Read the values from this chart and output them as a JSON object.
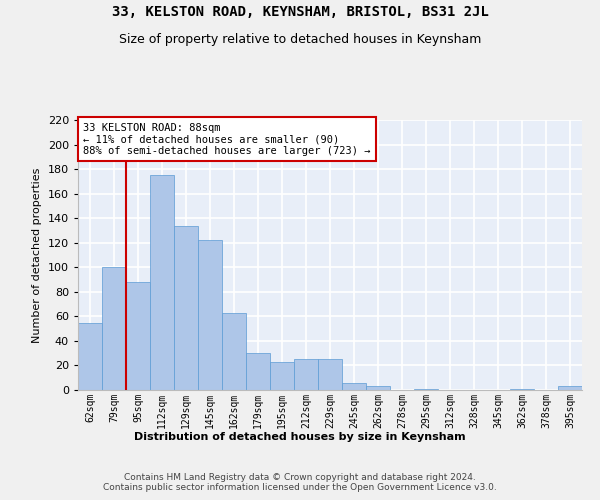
{
  "title": "33, KELSTON ROAD, KEYNSHAM, BRISTOL, BS31 2JL",
  "subtitle": "Size of property relative to detached houses in Keynsham",
  "xlabel": "Distribution of detached houses by size in Keynsham",
  "ylabel": "Number of detached properties",
  "categories": [
    "62sqm",
    "79sqm",
    "95sqm",
    "112sqm",
    "129sqm",
    "145sqm",
    "162sqm",
    "179sqm",
    "195sqm",
    "212sqm",
    "229sqm",
    "245sqm",
    "262sqm",
    "278sqm",
    "295sqm",
    "312sqm",
    "328sqm",
    "345sqm",
    "362sqm",
    "378sqm",
    "395sqm"
  ],
  "values": [
    55,
    100,
    88,
    175,
    134,
    122,
    63,
    30,
    23,
    25,
    25,
    6,
    3,
    0,
    1,
    0,
    0,
    0,
    1,
    0,
    3
  ],
  "bar_color": "#aec6e8",
  "bar_edgecolor": "#5b9bd5",
  "background_color": "#e8eef8",
  "grid_color": "#ffffff",
  "vline_color": "#cc0000",
  "vline_index": 1.5,
  "annotation_text": "33 KELSTON ROAD: 88sqm\n← 11% of detached houses are smaller (90)\n88% of semi-detached houses are larger (723) →",
  "annotation_box_color": "#ffffff",
  "annotation_box_edgecolor": "#cc0000",
  "ylim": [
    0,
    220
  ],
  "yticks": [
    0,
    20,
    40,
    60,
    80,
    100,
    120,
    140,
    160,
    180,
    200,
    220
  ],
  "fig_bgcolor": "#f0f0f0",
  "footer": "Contains HM Land Registry data © Crown copyright and database right 2024.\nContains public sector information licensed under the Open Government Licence v3.0."
}
